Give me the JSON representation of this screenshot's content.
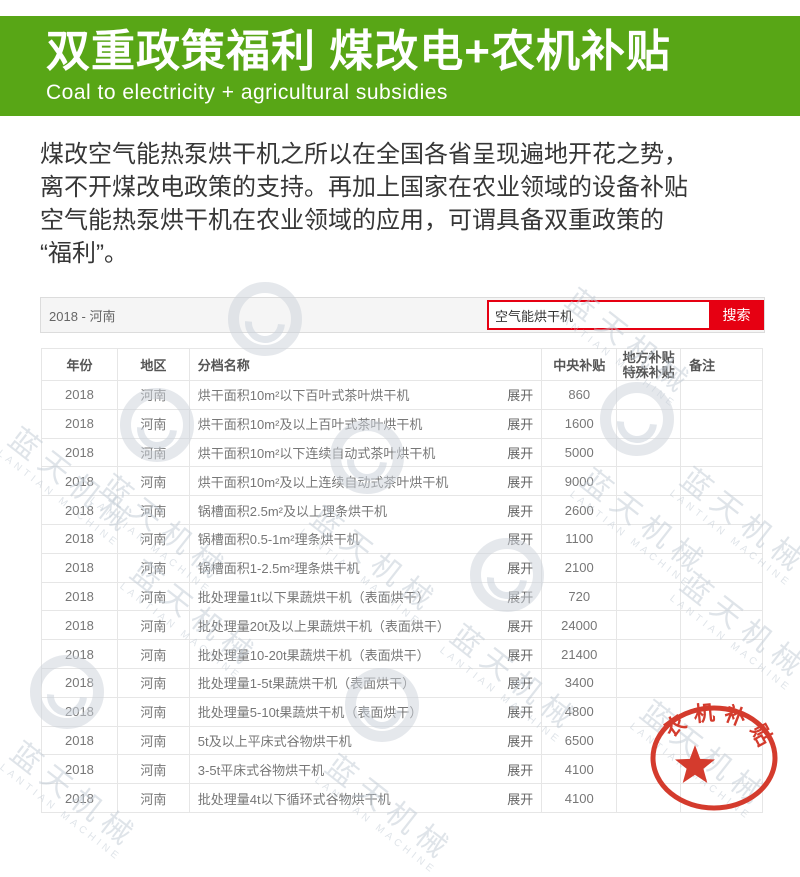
{
  "banner": {
    "title": "双重政策福利  煤改电+农机补贴",
    "subtitle": "Coal to electricity + agricultural subsidies",
    "bg_color": "#58a616"
  },
  "intro": {
    "lines": [
      "煤改空气能热泵烘干机之所以在全国各省呈现遍地开花之势，",
      "离不开煤改电政策的支持。再加上国家在农业领域的设备补贴",
      "空气能热泵烘干机在农业领域的应用，可谓具备双重政策的",
      "“福利”。"
    ]
  },
  "toolbar": {
    "filter_label": "2018 - 河南",
    "search_value": "空气能烘干机",
    "search_button_label": "搜索",
    "accent_color": "#e60012"
  },
  "table": {
    "columns": {
      "year": "年份",
      "region": "地区",
      "name": "分档名称",
      "central": "中央补贴",
      "local_line1": "地方补贴",
      "local_line2": "特殊补贴",
      "note": "备注"
    },
    "expand_label": "展开",
    "rows": [
      {
        "year": "2018",
        "region": "河南",
        "name": "烘干面积10m²以下百叶式茶叶烘干机",
        "central": "860",
        "local": "",
        "note": ""
      },
      {
        "year": "2018",
        "region": "河南",
        "name": "烘干面积10m²及以上百叶式茶叶烘干机",
        "central": "1600",
        "local": "",
        "note": ""
      },
      {
        "year": "2018",
        "region": "河南",
        "name": "烘干面积10m²以下连续自动式茶叶烘干机",
        "central": "5000",
        "local": "",
        "note": ""
      },
      {
        "year": "2018",
        "region": "河南",
        "name": "烘干面积10m²及以上连续自动式茶叶烘干机",
        "central": "9000",
        "local": "",
        "note": ""
      },
      {
        "year": "2018",
        "region": "河南",
        "name": "锅槽面积2.5m²及以上理条烘干机",
        "central": "2600",
        "local": "",
        "note": ""
      },
      {
        "year": "2018",
        "region": "河南",
        "name": "锅槽面积0.5-1m²理条烘干机",
        "central": "1100",
        "local": "",
        "note": ""
      },
      {
        "year": "2018",
        "region": "河南",
        "name": "锅槽面积1-2.5m²理条烘干机",
        "central": "2100",
        "local": "",
        "note": ""
      },
      {
        "year": "2018",
        "region": "河南",
        "name": "批处理量1t以下果蔬烘干机（表面烘干）",
        "central": "720",
        "local": "",
        "note": ""
      },
      {
        "year": "2018",
        "region": "河南",
        "name": "批处理量20t及以上果蔬烘干机（表面烘干）",
        "central": "24000",
        "local": "",
        "note": ""
      },
      {
        "year": "2018",
        "region": "河南",
        "name": "批处理量10-20t果蔬烘干机（表面烘干）",
        "central": "21400",
        "local": "",
        "note": ""
      },
      {
        "year": "2018",
        "region": "河南",
        "name": "批处理量1-5t果蔬烘干机（表面烘干）",
        "central": "3400",
        "local": "",
        "note": ""
      },
      {
        "year": "2018",
        "region": "河南",
        "name": "批处理量5-10t果蔬烘干机（表面烘干）",
        "central": "4800",
        "local": "",
        "note": ""
      },
      {
        "year": "2018",
        "region": "河南",
        "name": "5t及以上平床式谷物烘干机",
        "central": "6500",
        "local": "",
        "note": ""
      },
      {
        "year": "2018",
        "region": "河南",
        "name": "3-5t平床式谷物烘干机",
        "central": "4100",
        "local": "",
        "note": ""
      },
      {
        "year": "2018",
        "region": "河南",
        "name": "批处理量4t以下循环式谷物烘干机",
        "central": "4100",
        "local": "",
        "note": ""
      }
    ]
  },
  "watermark": {
    "text": "蓝天机械",
    "subtext": "LANTIAN MACHINE",
    "color": "#c8d0d8"
  },
  "stamp": {
    "text": "农机补贴",
    "color": "#d43b2d"
  }
}
